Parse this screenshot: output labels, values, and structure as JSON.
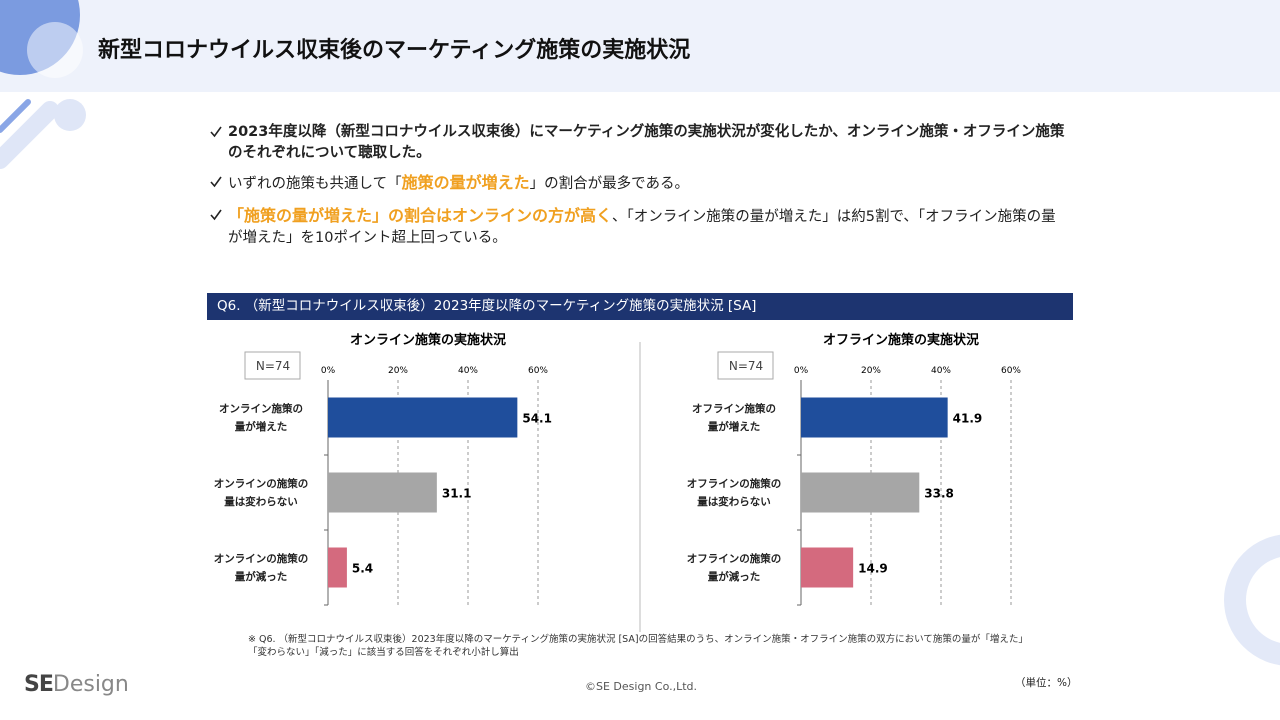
{
  "header": {
    "title": "新型コロナウイルス収束後のマーケティング施策の実施状況"
  },
  "bullets": [
    {
      "parts": [
        {
          "text": "2023年度以降（新型コロナウイルス収束後）にマーケティング施策の実施状況が変化したか、オンライン施策・オフライン施策のそれぞれについて聴取した。",
          "emphasis": false
        }
      ]
    },
    {
      "parts": [
        {
          "text": "いずれの施策も共通して「",
          "emphasis": false
        },
        {
          "text": "施策の量が増えた",
          "emphasis": true
        },
        {
          "text": "」の割合が最多である。",
          "emphasis": false
        }
      ]
    },
    {
      "parts": [
        {
          "text": "「施策の量が増えた」の割合はオンラインの方が高く",
          "emphasis": true
        },
        {
          "text": "、「オンライン施策の量が増えた」は約5割で、「オフライン施策の量が増えた」を10ポイント超上回っている。",
          "emphasis": false
        }
      ]
    }
  ],
  "question": "Q6. （新型コロナウイルス収束後）2023年度以降のマーケティング施策の実施状況 [SA]",
  "chart_data": [
    {
      "type": "bar",
      "orientation": "horizontal",
      "title": "オンライン施策の実施状況",
      "sample_size": "N=74",
      "categories": [
        "オンライン施策の\n量が増えた",
        "オンラインの施策の\n量は変わらない",
        "オンラインの施策の\n量が減った"
      ],
      "values": [
        54.1,
        31.1,
        5.4
      ],
      "colors": [
        "#1f4e9c",
        "#a6a6a6",
        "#d46a7e"
      ],
      "xlim": [
        0,
        60
      ],
      "xticks": [
        {
          "value": 0,
          "label": "0%"
        },
        {
          "value": 20,
          "label": "20%"
        },
        {
          "value": 40,
          "label": "40%"
        },
        {
          "value": 60,
          "label": "60%"
        }
      ],
      "grid": true
    },
    {
      "type": "bar",
      "orientation": "horizontal",
      "title": "オフライン施策の実施状況",
      "sample_size": "N=74",
      "categories": [
        "オフライン施策の\n量が増えた",
        "オフラインの施策の\n量は変わらない",
        "オフラインの施策の\n量が減った"
      ],
      "values": [
        41.9,
        33.8,
        14.9
      ],
      "colors": [
        "#1f4e9c",
        "#a6a6a6",
        "#d46a7e"
      ],
      "xlim": [
        0,
        60
      ],
      "xticks": [
        {
          "value": 0,
          "label": "0%"
        },
        {
          "value": 20,
          "label": "20%"
        },
        {
          "value": 40,
          "label": "40%"
        },
        {
          "value": 60,
          "label": "60%"
        }
      ],
      "grid": true
    }
  ],
  "footnote": "※ Q6. （新型コロナウイルス収束後）2023年度以降のマーケティング施策の実施状況 [SA]の回答結果のうち、オンライン施策・オフライン施策の双方において施策の量が「増えた」「変わらない」「減った」に該当する回答をそれぞれ小計し算出",
  "unit": "（単位：%）",
  "copyright": "©SE Design Co.,Ltd.",
  "logo": {
    "bold": "SE",
    "light": "Design"
  }
}
